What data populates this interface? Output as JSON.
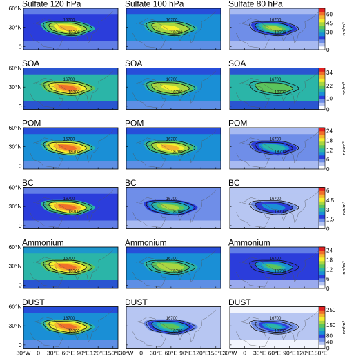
{
  "chart_data": {
    "type": "heatmap",
    "columns": [
      "120 hPa",
      "100 hPa",
      "80 hPa"
    ],
    "longitude_ticks": [
      "30°W",
      "0",
      "30°E",
      "60°E",
      "90°E",
      "120°E",
      "150°E"
    ],
    "latitude_ticks": [
      "0",
      "30°N",
      "60°N"
    ],
    "contour_labels": [
      "16700",
      "16700",
      "18700"
    ],
    "colors": [
      "#ffffff",
      "#b7c6f2",
      "#6f8ee8",
      "#2b3ddb",
      "#1a8fd6",
      "#2bb5a8",
      "#5cc45c",
      "#a9d641",
      "#f5ef2f",
      "#f5b52f",
      "#f0702b",
      "#e02020"
    ],
    "species": [
      {
        "name": "Sulfate",
        "titles": [
          "Sulfate 120 hPa",
          "Sulfate 100 hPa",
          "Sulfate  80 hPa"
        ],
        "unit": "ng/m³",
        "colorbar_ticks": [
          "0",
          "30",
          "45",
          "60"
        ],
        "colorbar_max": 70,
        "peak_values": [
          58,
          52,
          42
        ],
        "background_values": [
          22,
          24,
          12
        ]
      },
      {
        "name": "SOA",
        "titles": [
          "SOA",
          "SOA",
          "SOA"
        ],
        "unit": "ng/m³",
        "colorbar_ticks": [
          "0",
          "10",
          "22",
          "34"
        ],
        "colorbar_max": 38,
        "peak_values": [
          33,
          28,
          22
        ],
        "background_values": [
          16,
          14,
          17
        ]
      },
      {
        "name": "POM",
        "titles": [
          "POM",
          "POM",
          "POM"
        ],
        "unit": "ng/m³",
        "colorbar_ticks": [
          "0",
          "6",
          "12",
          "18",
          "24"
        ],
        "colorbar_max": 26,
        "peak_values": [
          24,
          21,
          12
        ],
        "background_values": [
          9,
          9,
          5
        ]
      },
      {
        "name": "BC",
        "titles": [
          "BC",
          "BC",
          "BC"
        ],
        "unit": "ng/m³",
        "colorbar_ticks": [
          "0",
          "1.5",
          "3",
          "4.5",
          "6"
        ],
        "colorbar_max": 6.5,
        "peak_values": [
          6.2,
          4.2,
          2.6
        ],
        "background_values": [
          1.8,
          1.3,
          0.6
        ]
      },
      {
        "name": "Ammonium",
        "titles": [
          "Ammonium",
          "Ammonium",
          "Ammonium"
        ],
        "unit": "ng/m³",
        "colorbar_ticks": [
          "0",
          "6",
          "12",
          "18",
          "24"
        ],
        "colorbar_max": 26,
        "peak_values": [
          24,
          17,
          13
        ],
        "background_values": [
          12,
          9,
          6
        ]
      },
      {
        "name": "DUST",
        "titles": [
          "DUST",
          "DUST",
          "DUST"
        ],
        "unit": "ng/m³",
        "colorbar_ticks": [
          "0",
          "40",
          "80",
          "150",
          "250"
        ],
        "colorbar_max": 270,
        "peak_values": [
          250,
          150,
          120
        ],
        "background_values": [
          90,
          35,
          15
        ]
      }
    ]
  }
}
